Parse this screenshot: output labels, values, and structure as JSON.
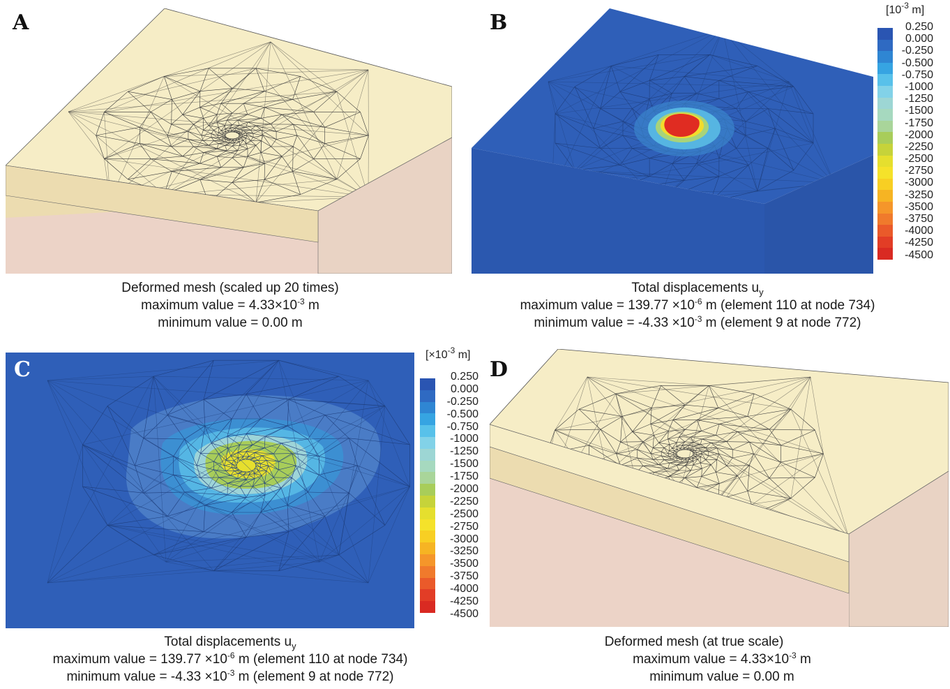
{
  "panels": {
    "a": {
      "letter": "A",
      "caption": {
        "line1": "Deformed mesh (scaled up 20 times)",
        "line2_pre": "maximum value = 4.33×10",
        "line2_exp": "-3",
        "line2_post": " m",
        "line3": "minimum value = 0.00 m"
      }
    },
    "b": {
      "letter": "B",
      "legend_unit_pre": "[10",
      "legend_unit_exp": "-3",
      "legend_unit_post": " m]",
      "caption": {
        "line1_pre": "Total displacements u",
        "line1_sub": "y",
        "line2_pre": "maximum value = 139.77 ×10",
        "line2_exp": "-6",
        "line2_post": " m (element 110 at node 734)",
        "line3_pre": "minimum value = -4.33 ×10",
        "line3_exp": "-3",
        "line3_post": " m (element 9 at node 772)"
      }
    },
    "c": {
      "letter": "C",
      "legend_unit_pre": "[×10",
      "legend_unit_exp": "-3",
      "legend_unit_post": " m]",
      "caption": {
        "line1_pre": "Total displacements u",
        "line1_sub": "y",
        "line2_pre": "maximum value = 139.77 ×10",
        "line2_exp": "-6",
        "line2_post": " m (element 110 at node 734)",
        "line3_pre": "minimum value = -4.33 ×10",
        "line3_exp": "-3",
        "line3_post": " m (element 9 at node 772)"
      }
    },
    "d": {
      "letter": "D",
      "caption": {
        "line1": "Deformed mesh (at true scale)",
        "line2_pre": "maximum value = 4.33×10",
        "line2_exp": "-3",
        "line2_post": " m",
        "line3": "minimum value = 0.00 m"
      }
    }
  },
  "legend_ticks": [
    "0.250",
    "0.000",
    "-0.250",
    "-0.500",
    "-0.750",
    "-1000",
    "-1250",
    "-1500",
    "-1750",
    "-2000",
    "-2250",
    "-2500",
    "-2750",
    "-3000",
    "-3250",
    "-3500",
    "-3750",
    "-4000",
    "-4250",
    "-4500"
  ],
  "legend_colors": [
    "#2a55b2",
    "#2f6ac2",
    "#2f86d3",
    "#36a4e2",
    "#58c1ea",
    "#82d2e8",
    "#9dd6d4",
    "#a6d9bf",
    "#a9d59a",
    "#a8cd5a",
    "#c6d33a",
    "#e5df2e",
    "#f5e22a",
    "#f8cf23",
    "#f6b423",
    "#f5962a",
    "#f07a2c",
    "#ea5a2a",
    "#e23d26",
    "#d92a22"
  ],
  "colors": {
    "mesh_top": "#f6edc6",
    "mesh_layer": "#ecdcb0",
    "mesh_soil": "#ecd3c7",
    "contour_base": "#2f5fb8",
    "mesh_line": "#333333"
  }
}
